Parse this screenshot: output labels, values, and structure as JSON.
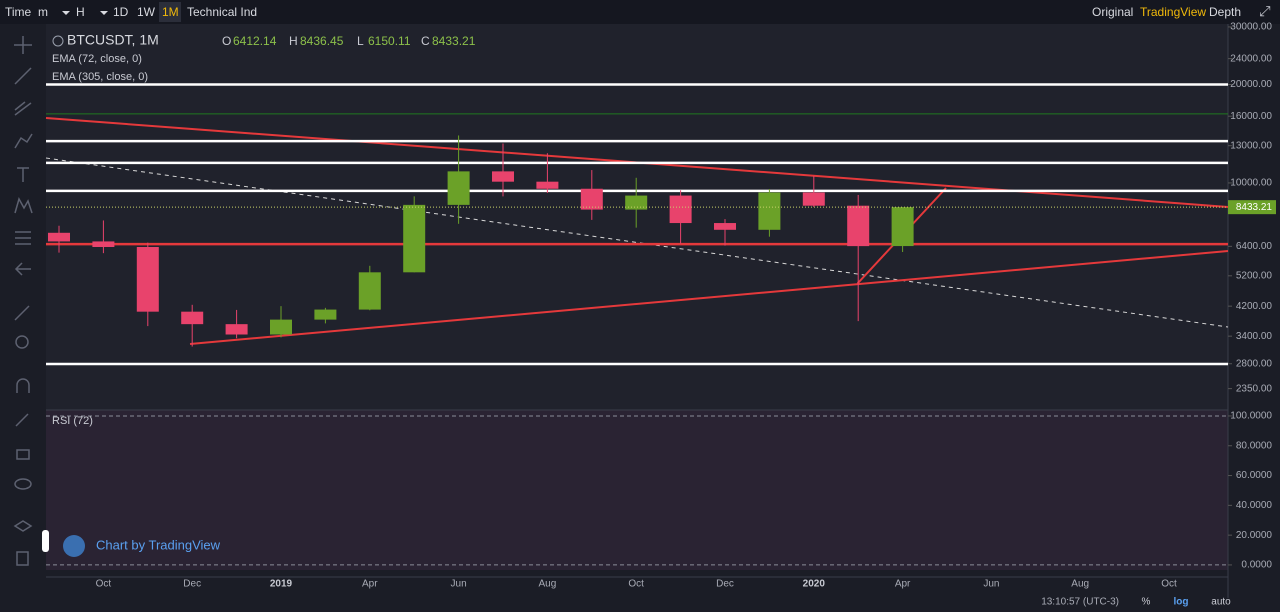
{
  "toolbar": {
    "left": [
      "Time",
      "m",
      "H",
      "1D",
      "1W",
      "1M",
      "Technical Ind"
    ],
    "right": [
      "Original",
      "TradingView",
      "Depth"
    ]
  },
  "footer": {
    "time": "13:10:57 (UTC-3)",
    "options": [
      "%",
      "log",
      "auto"
    ]
  },
  "branding": "Chart by TradingView",
  "chart_data": [
    {
      "type": "candlestick",
      "title": "BTCUSDT, 1M",
      "indicators": [
        "EMA (72, close, 0)",
        "EMA (305, close, 0)"
      ],
      "legend_labels": [
        "O",
        "H",
        "L",
        "C"
      ],
      "categories": [
        null,
        "Oct",
        null,
        "Dec",
        null,
        "2019",
        null,
        "Apr",
        null,
        "Jun",
        null,
        "Aug",
        null,
        "Oct",
        null,
        "Dec",
        null,
        "2020",
        null,
        "Apr",
        null,
        "Jun",
        null,
        "Aug",
        null,
        "Oct",
        null
      ],
      "open": [
        7040,
        6625,
        6370,
        4040,
        3700,
        3440,
        3820,
        4100,
        5330,
        8570,
        10850,
        10090,
        9600,
        8290,
        9150,
        7540,
        7190,
        9350,
        8520,
        6412.14,
        null,
        null,
        null,
        null,
        null,
        null,
        null
      ],
      "high": [
        7400,
        7680,
        6570,
        4240,
        4090,
        4200,
        4150,
        5580,
        9100,
        13970,
        13200,
        12330,
        10950,
        10370,
        9500,
        7750,
        9580,
        10500,
        9190,
        8436.45,
        null,
        null,
        null,
        null,
        null,
        null,
        null
      ],
      "low": [
        6120,
        6100,
        3650,
        3160,
        3350,
        3370,
        3720,
        4080,
        5330,
        7500,
        9100,
        9320,
        7710,
        7300,
        6520,
        6430,
        6850,
        8440,
        3780,
        6150.11,
        null,
        null,
        null,
        null,
        null,
        null,
        null
      ],
      "close": [
        6625,
        6370,
        4040,
        3700,
        3440,
        3820,
        4100,
        5330,
        8570,
        10850,
        10090,
        9600,
        8290,
        9150,
        7540,
        7190,
        9350,
        8520,
        6410,
        8433.21,
        null,
        null,
        null,
        null,
        null,
        null,
        null
      ],
      "up_color": "#6ba128",
      "down_color": "#e8436c",
      "log_scale": true,
      "ylim": [
        2094,
        31500
      ],
      "yticks": [
        {
          "value": 30000,
          "label": "30000.00"
        },
        {
          "value": 24000,
          "label": "24000.00"
        },
        {
          "value": 20000,
          "label": "20000.00"
        },
        {
          "value": 16000,
          "label": "16000.00"
        },
        {
          "value": 13000,
          "label": "13000.00"
        },
        {
          "value": 10000,
          "label": "10000.00"
        },
        {
          "value": 6400,
          "label": "6400.00"
        },
        {
          "value": 5200,
          "label": "5200.00"
        },
        {
          "value": 4200,
          "label": "4200.00"
        },
        {
          "value": 3400,
          "label": "3400.00"
        },
        {
          "value": 2800,
          "label": "2800.00"
        },
        {
          "value": 2350,
          "label": "2350.00"
        }
      ],
      "levels": [
        {
          "value": 20000,
          "color": "#ffffff"
        },
        {
          "value": 16270,
          "color": "#1f7a1f"
        },
        {
          "value": 13430,
          "color": "#ffffff"
        },
        {
          "value": 11520,
          "color": "#ffffff"
        },
        {
          "value": 9460,
          "color": "#ffffff"
        },
        {
          "value": 6500,
          "color": "#e5393b"
        },
        {
          "value": 2796,
          "color": "#ffffff"
        }
      ]
    },
    {
      "type": "rsi",
      "title": "RSI (72)",
      "ylim": [
        -3.4,
        104
      ],
      "yticks": [
        {
          "value": 100,
          "label": "100.0000"
        },
        {
          "value": 80,
          "label": "80.0000"
        },
        {
          "value": 60,
          "label": "60.0000"
        },
        {
          "value": 40,
          "label": "40.0000"
        },
        {
          "value": 20,
          "label": "20.0000"
        },
        {
          "value": 0,
          "label": "0.0000"
        }
      ],
      "dashed_levels": [
        100,
        0
      ]
    }
  ]
}
